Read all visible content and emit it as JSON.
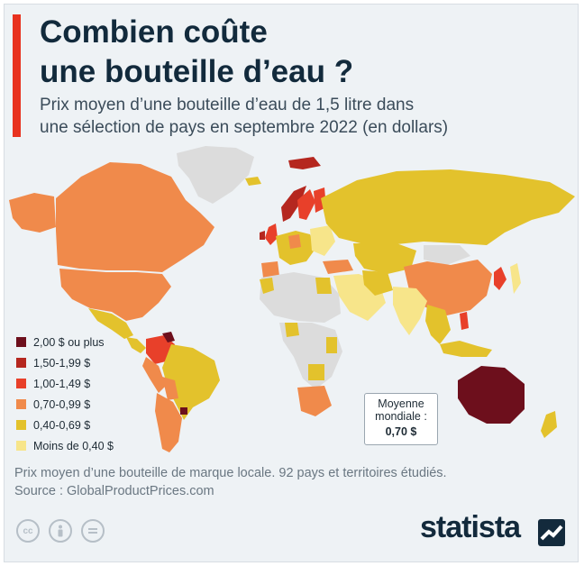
{
  "header": {
    "title_line1": "Combien coûte",
    "title_line2": "une bouteille d’eau ?",
    "subtitle_line1": "Prix moyen d’une bouteille d’eau de 1,5 litre dans",
    "subtitle_line2": "une sélection de pays en septembre 2022 (en dollars)"
  },
  "colors": {
    "accent": "#e8321f",
    "no_data": "#dcdcdc",
    "c2_00_plus": "#6d0f1c",
    "c1_50_1_99": "#b5271f",
    "c1_00_1_49": "#e8402a",
    "c0_70_0_99": "#f08a4b",
    "c0_40_0_69": "#e3c22c",
    "c_under_0_40": "#f7e58a"
  },
  "legend": [
    {
      "label": "2,00 $ ou plus",
      "color": "#6d0f1c"
    },
    {
      "label": "1,50-1,99 $",
      "color": "#b5271f"
    },
    {
      "label": "1,00-1,49 $",
      "color": "#e8402a"
    },
    {
      "label": "0,70-0,99 $",
      "color": "#f08a4b"
    },
    {
      "label": "0,40-0,69 $",
      "color": "#e3c22c"
    },
    {
      "label": "Moins de 0,40 $",
      "color": "#f7e58a"
    }
  ],
  "average": {
    "label_line1": "Moyenne",
    "label_line2": "mondiale :",
    "value": "0,70 $"
  },
  "footer": {
    "note": "Prix moyen d’une bouteille de marque locale. 92 pays et territoires étudiés.",
    "source": "Source : GlobalProductPrices.com",
    "brand": "statista",
    "license_icons": [
      "cc-icon",
      "by-icon",
      "nd-icon"
    ]
  }
}
